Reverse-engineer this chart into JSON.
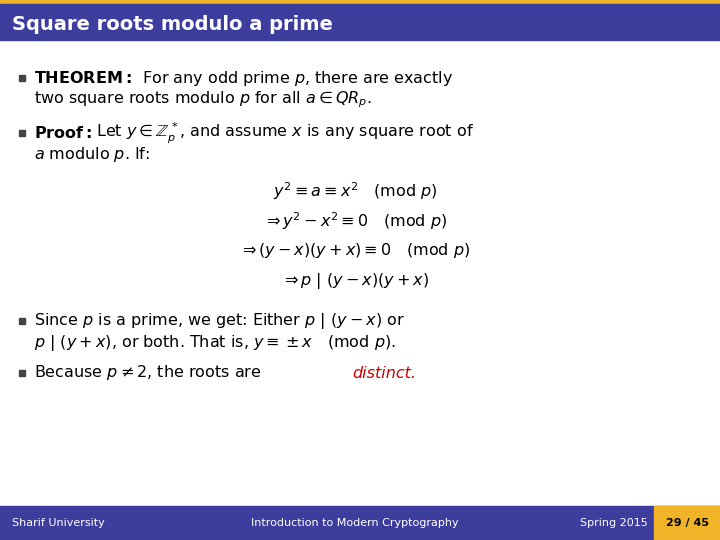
{
  "title": "Square roots modulo a prime",
  "title_bg": "#3d3d9e",
  "title_fg": "#ffffff",
  "slide_bg": "#ffffff",
  "footer_bg": "#3d3d9e",
  "footer_fg": "#ffffff",
  "footer_left": "Sharif University",
  "footer_center": "Introduction to Modern Cryptography",
  "footer_right": "Spring 2015",
  "page_num": "29 / 45",
  "page_num_bg": "#f0b429",
  "top_bar_color": "#f0b429",
  "distinct_color": "#cc0000"
}
